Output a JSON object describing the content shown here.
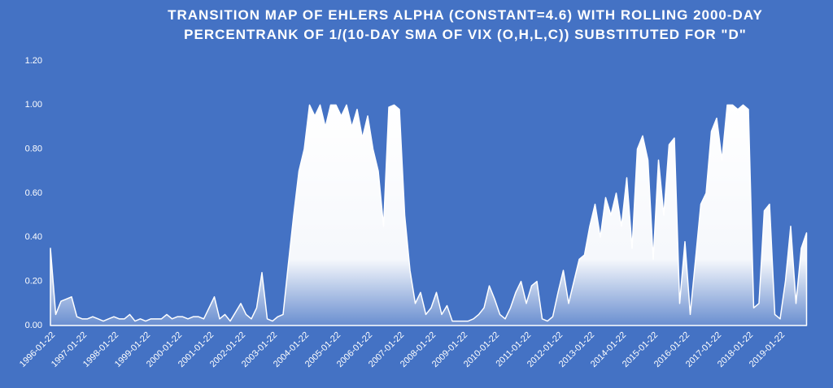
{
  "chart_data": {
    "type": "area",
    "title": [
      "TRANSITION  MAP OF EHLERS ALPHA (CONSTANT=4.6)  WITH ROLLING 2000-DAY",
      "PERCENTRANK  OF 1/(10-DAY SMA OF VIX (O,H,L,C))  SUBSTITUTED  FOR \"D\""
    ],
    "color": "#ffffff",
    "x": [
      "1996-01-22",
      "1996-03-22",
      "1996-05-22",
      "1996-07-22",
      "1996-09-22",
      "1996-11-22",
      "1997-01-22",
      "1997-03-22",
      "1997-05-22",
      "1997-07-22",
      "1997-09-22",
      "1997-11-22",
      "1998-01-22",
      "1998-03-22",
      "1998-05-22",
      "1998-07-22",
      "1998-09-22",
      "1998-11-22",
      "1999-01-22",
      "1999-03-22",
      "1999-05-22",
      "1999-07-22",
      "1999-09-22",
      "1999-11-22",
      "2000-01-22",
      "2000-03-22",
      "2000-05-22",
      "2000-07-22",
      "2000-09-22",
      "2000-11-22",
      "2001-01-22",
      "2001-03-22",
      "2001-05-22",
      "2001-07-22",
      "2001-09-22",
      "2001-11-22",
      "2002-01-22",
      "2002-03-22",
      "2002-05-22",
      "2002-07-22",
      "2002-09-22",
      "2002-11-22",
      "2003-01-22",
      "2003-03-22",
      "2003-05-22",
      "2003-07-22",
      "2003-09-22",
      "2003-11-22",
      "2004-01-22",
      "2004-03-22",
      "2004-05-22",
      "2004-07-22",
      "2004-09-22",
      "2004-11-22",
      "2005-01-22",
      "2005-03-22",
      "2005-05-22",
      "2005-07-22",
      "2005-09-22",
      "2005-11-22",
      "2006-01-22",
      "2006-03-22",
      "2006-05-22",
      "2006-07-22",
      "2006-09-22",
      "2006-11-22",
      "2007-01-22",
      "2007-03-22",
      "2007-05-22",
      "2007-07-22",
      "2007-09-22",
      "2007-11-22",
      "2008-01-22",
      "2008-03-22",
      "2008-05-22",
      "2008-07-22",
      "2008-09-22",
      "2008-11-22",
      "2009-01-22",
      "2009-03-22",
      "2009-05-22",
      "2009-07-22",
      "2009-09-22",
      "2009-11-22",
      "2010-01-22",
      "2010-03-22",
      "2010-05-22",
      "2010-07-22",
      "2010-09-22",
      "2010-11-22",
      "2011-01-22",
      "2011-03-22",
      "2011-05-22",
      "2011-07-22",
      "2011-09-22",
      "2011-11-22",
      "2012-01-22",
      "2012-03-22",
      "2012-05-22",
      "2012-07-22",
      "2012-09-22",
      "2012-11-22",
      "2013-01-22",
      "2013-03-22",
      "2013-05-22",
      "2013-07-22",
      "2013-09-22",
      "2013-11-22",
      "2014-01-22",
      "2014-03-22",
      "2014-05-22",
      "2014-07-22",
      "2014-09-22",
      "2014-11-22",
      "2015-01-22",
      "2015-03-22",
      "2015-05-22",
      "2015-07-22",
      "2015-09-22",
      "2015-11-22",
      "2016-01-22",
      "2016-03-22",
      "2016-05-22",
      "2016-07-22",
      "2016-09-22",
      "2016-11-22",
      "2017-01-22",
      "2017-03-22",
      "2017-05-22",
      "2017-07-22",
      "2017-09-22",
      "2017-11-22",
      "2018-01-22",
      "2018-03-22",
      "2018-05-22",
      "2018-07-22",
      "2018-09-22",
      "2018-11-22",
      "2019-01-22",
      "2019-03-22",
      "2019-05-22",
      "2019-07-22",
      "2019-09-22",
      "2019-11-22"
    ],
    "values": [
      0.35,
      0.05,
      0.11,
      0.12,
      0.13,
      0.04,
      0.03,
      0.03,
      0.04,
      0.03,
      0.02,
      0.03,
      0.04,
      0.03,
      0.03,
      0.05,
      0.02,
      0.03,
      0.02,
      0.03,
      0.03,
      0.03,
      0.05,
      0.03,
      0.04,
      0.04,
      0.03,
      0.04,
      0.04,
      0.03,
      0.08,
      0.13,
      0.03,
      0.05,
      0.02,
      0.06,
      0.1,
      0.05,
      0.03,
      0.08,
      0.24,
      0.03,
      0.02,
      0.04,
      0.05,
      0.28,
      0.5,
      0.7,
      0.8,
      1.0,
      0.95,
      1.0,
      0.9,
      1.0,
      1.0,
      0.95,
      1.0,
      0.9,
      0.98,
      0.85,
      0.95,
      0.8,
      0.7,
      0.45,
      0.99,
      1.0,
      0.98,
      0.5,
      0.25,
      0.1,
      0.15,
      0.05,
      0.08,
      0.15,
      0.05,
      0.09,
      0.02,
      0.02,
      0.02,
      0.02,
      0.03,
      0.05,
      0.08,
      0.18,
      0.12,
      0.05,
      0.03,
      0.08,
      0.15,
      0.2,
      0.1,
      0.18,
      0.2,
      0.03,
      0.02,
      0.04,
      0.15,
      0.25,
      0.1,
      0.2,
      0.3,
      0.32,
      0.45,
      0.55,
      0.4,
      0.58,
      0.5,
      0.6,
      0.45,
      0.67,
      0.35,
      0.8,
      0.86,
      0.75,
      0.3,
      0.75,
      0.5,
      0.82,
      0.85,
      0.1,
      0.38,
      0.05,
      0.3,
      0.55,
      0.6,
      0.88,
      0.94,
      0.75,
      1.0,
      1.0,
      0.98,
      1.0,
      0.98,
      0.08,
      0.1,
      0.52,
      0.55,
      0.05,
      0.03,
      0.2,
      0.45,
      0.1,
      0.35,
      0.42
    ],
    "ylim": [
      0,
      1.2
    ],
    "yticks": [
      {
        "value": 0,
        "label": "0.00"
      },
      {
        "value": 0.2,
        "label": "0.20"
      },
      {
        "value": 0.4,
        "label": "0.40"
      },
      {
        "value": 0.6,
        "label": "0.60"
      },
      {
        "value": 0.8,
        "label": "0.80"
      },
      {
        "value": 1.0,
        "label": "1.00"
      },
      {
        "value": 1.2,
        "label": "1.20"
      }
    ],
    "grid": false
  }
}
